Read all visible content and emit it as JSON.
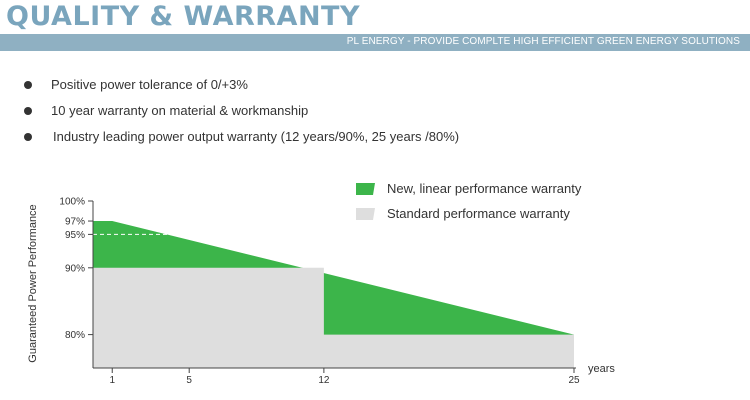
{
  "header": {
    "title": "QUALITY & WARRANTY",
    "subtitle": "PL ENERGY - PROVIDE COMPLTE HIGH EFFICIENT GREEN ENERGY SOLUTIONS",
    "title_color": "#7aa5bd",
    "banner_color": "#8fb0c2"
  },
  "bullets": [
    "Positive power tolerance of 0/+3%",
    "10 year warranty on material & workmanship",
    "Industry leading power output warranty (12 years/90%, 25 years /80%)"
  ],
  "chart_data": {
    "type": "area",
    "ylabel": "Guaranteed Power Performance",
    "xlabel": "years",
    "ylim": [
      75,
      100
    ],
    "xlim": [
      0,
      25
    ],
    "xticks": [
      {
        "value": 1,
        "label": "1"
      },
      {
        "value": 5,
        "label": "5"
      },
      {
        "value": 12,
        "label": "12"
      },
      {
        "value": 25,
        "label": "25"
      }
    ],
    "yticks": [
      {
        "value": 100,
        "label": "100%"
      },
      {
        "value": 97,
        "label": "97%"
      },
      {
        "value": 95,
        "label": "95%"
      },
      {
        "value": 90,
        "label": "90%"
      },
      {
        "value": 80,
        "label": "80%"
      }
    ],
    "reference_line": {
      "y": 95,
      "x": [
        0,
        5
      ]
    },
    "series": [
      {
        "name": "New, linear performance warranty",
        "color": "#3cb54a",
        "points": [
          [
            0,
            97
          ],
          [
            1,
            97
          ],
          [
            25,
            80
          ]
        ]
      },
      {
        "name": "Standard performance warranty",
        "color": "#dedede",
        "points": [
          [
            0,
            90
          ],
          [
            12,
            90
          ],
          [
            12,
            80
          ],
          [
            25,
            80
          ]
        ]
      }
    ],
    "legend_position": "top-right"
  }
}
